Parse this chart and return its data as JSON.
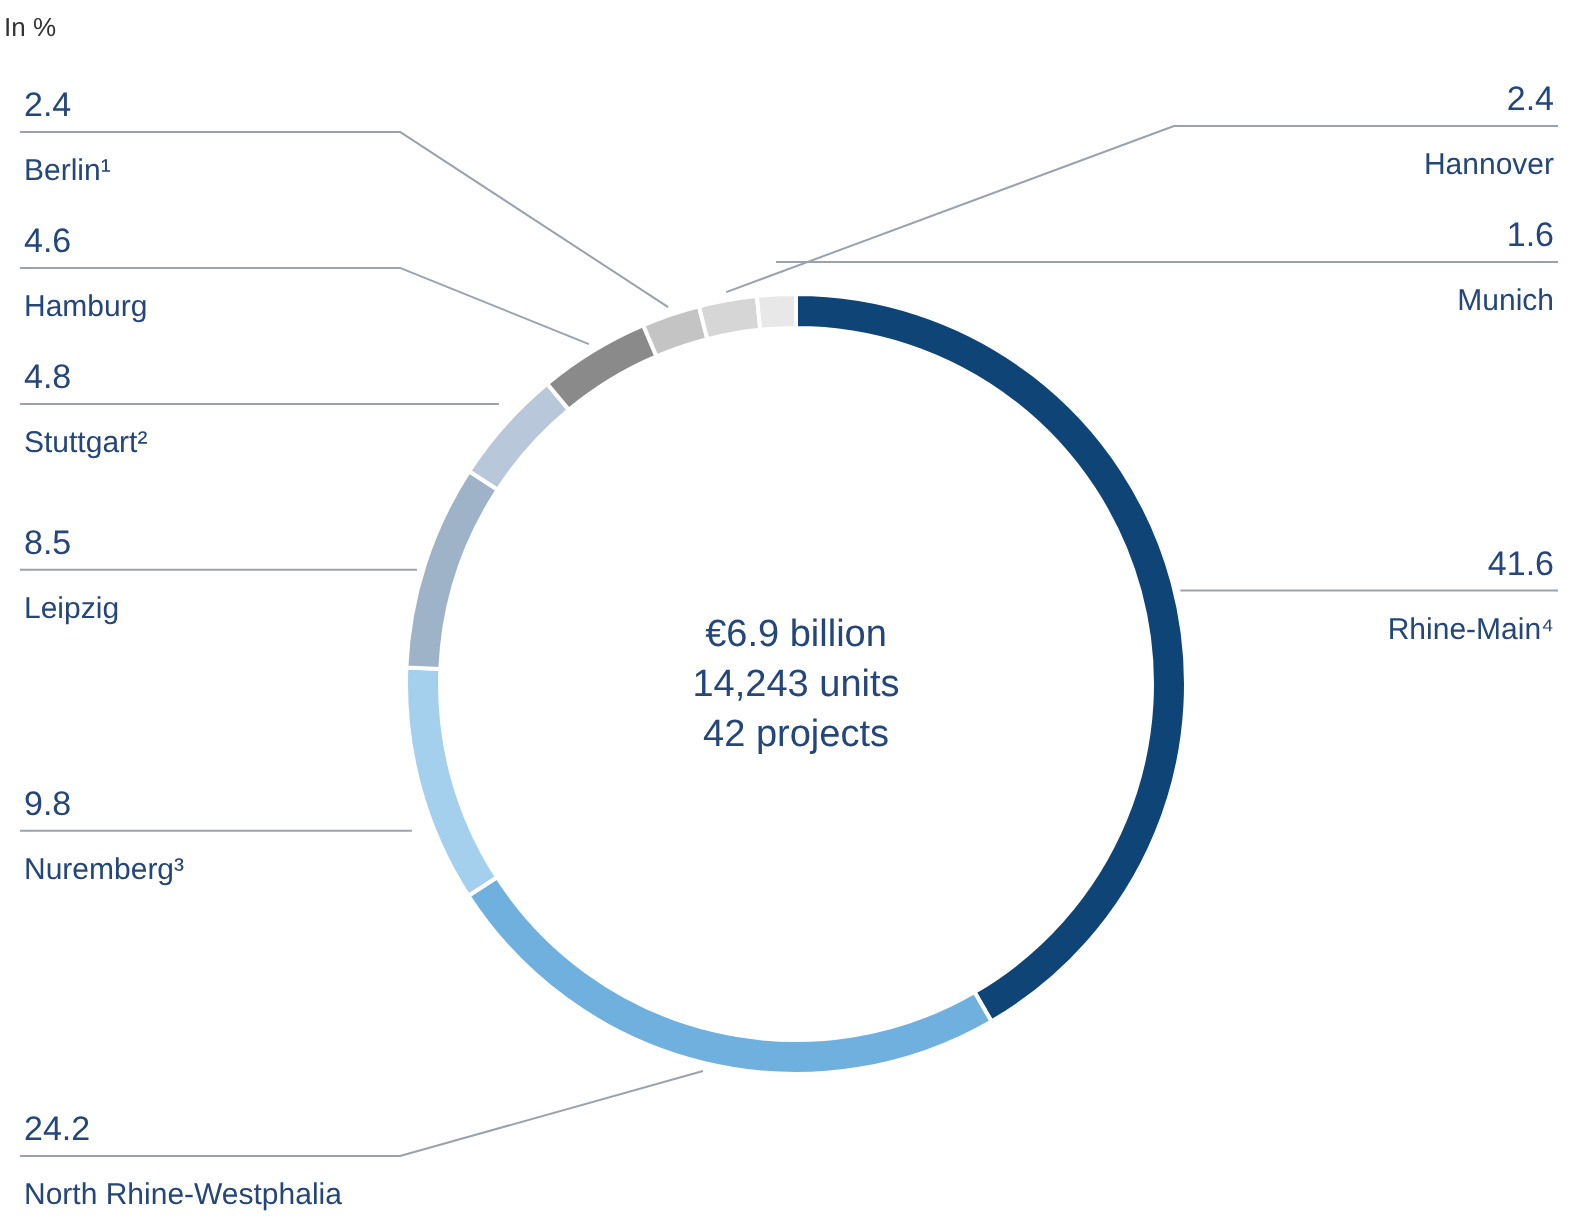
{
  "chart_data": {
    "type": "donut",
    "categories": [
      "Rhine-Main⁴",
      "North Rhine-Westphalia",
      "Nuremberg³",
      "Leipzig",
      "Stuttgart²",
      "Hamburg",
      "Berlin¹",
      "Hannover",
      "Munich"
    ],
    "values": [
      41.6,
      24.2,
      9.8,
      8.5,
      4.8,
      4.6,
      2.4,
      2.4,
      1.6
    ],
    "colors": [
      "#0f4476",
      "#6fb0df",
      "#a4d0ee",
      "#9fb3c8",
      "#b8c8da",
      "#8a8a8a",
      "#c4c4c4",
      "#d6d6d6",
      "#e8e8e8"
    ],
    "data_labels": true,
    "annotations": [
      "In %",
      "€6.9 billion",
      "14,243 units",
      "42 projects"
    ]
  }
}
